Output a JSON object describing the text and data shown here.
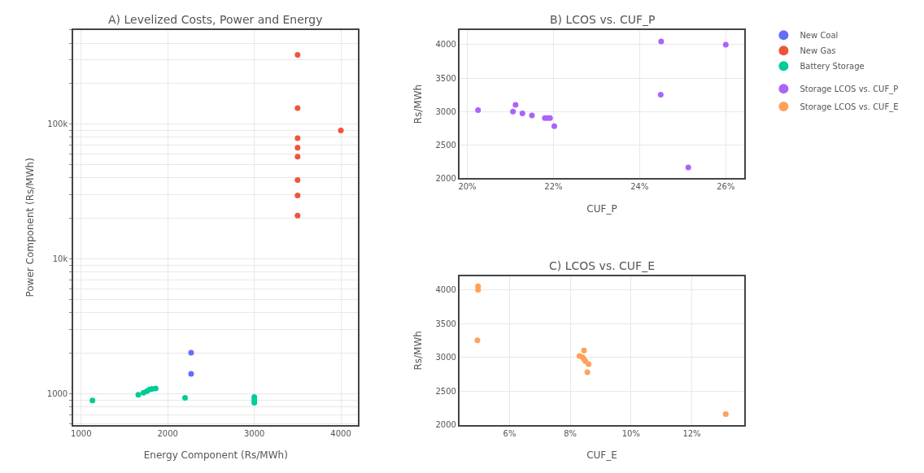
{
  "chart_data": [
    {
      "type": "scatter",
      "title": "A) Levelized Costs, Power and Energy",
      "xlabel": "Energy Component (Rs/MWh)",
      "ylabel": "Power Component (Rs/MWh)",
      "log": "y",
      "grid": true,
      "legend": "right",
      "marker": "circle",
      "xlim": [
        910,
        4200
      ],
      "xticks": [
        1000,
        2000,
        3000,
        4000
      ],
      "ylim": [
        590,
        500000
      ],
      "yticks": [
        {
          "value": 600,
          "label": null
        },
        {
          "value": 700,
          "label": null
        },
        {
          "value": 800,
          "label": null
        },
        {
          "value": 900,
          "label": null
        },
        1000,
        {
          "value": 2000,
          "label": null
        },
        {
          "value": 3000,
          "label": null
        },
        {
          "value": 4000,
          "label": null
        },
        {
          "value": 5000,
          "label": null
        },
        {
          "value": 6000,
          "label": null
        },
        {
          "value": 7000,
          "label": null
        },
        {
          "value": 8000,
          "label": null
        },
        {
          "value": 9000,
          "label": null
        },
        {
          "value": 10000,
          "label": "10k"
        },
        {
          "value": 20000,
          "label": null
        },
        {
          "value": 30000,
          "label": null
        },
        {
          "value": 40000,
          "label": null
        },
        {
          "value": 50000,
          "label": null
        },
        {
          "value": 60000,
          "label": null
        },
        {
          "value": 70000,
          "label": null
        },
        {
          "value": 80000,
          "label": null
        },
        {
          "value": 90000,
          "label": null
        },
        {
          "value": 100000,
          "label": "100k"
        },
        {
          "value": 200000,
          "label": null
        },
        {
          "value": 300000,
          "label": null
        },
        {
          "value": 400000,
          "label": null
        },
        {
          "value": 500000,
          "label": null
        }
      ],
      "series": [
        {
          "name": "New Coal",
          "color": "#636efa",
          "x": [
            2270,
            2270
          ],
          "values": [
            2020,
            1410
          ]
        },
        {
          "name": "New Gas",
          "color": "#ef553b",
          "x": [
            3500,
            3500,
            3500,
            3500,
            3500,
            3500,
            3500,
            3500,
            4000
          ],
          "values": [
            327000,
            132000,
            79000,
            67000,
            57500,
            38600,
            29700,
            21000,
            90000
          ]
        },
        {
          "name": "Battery Storage",
          "color": "#00cc96",
          "x": [
            1130,
            1660,
            1720,
            1760,
            1790,
            1820,
            1860,
            2200,
            3000,
            3000,
            3000
          ],
          "values": [
            895,
            985,
            1020,
            1050,
            1080,
            1090,
            1100,
            935,
            950,
            900,
            860
          ]
        }
      ]
    },
    {
      "type": "scatter",
      "title": "B) LCOS vs. CUF_P",
      "xlabel": "CUF_P",
      "ylabel": "Rs/MWh",
      "grid": true,
      "legend": "right",
      "marker": "circle",
      "xlim": [
        19.82,
        26.43
      ],
      "xticks": [
        {
          "value": 20,
          "label": "20%"
        },
        {
          "value": 22,
          "label": "22%"
        },
        {
          "value": 24,
          "label": "24%"
        },
        {
          "value": 26,
          "label": "26%"
        }
      ],
      "ylim": [
        2000,
        4220
      ],
      "yticks": [
        2000,
        2500,
        3000,
        3500,
        4000
      ],
      "series": [
        {
          "name": "Storage LCOS vs. CUF_P",
          "color": "#ab63fa",
          "x": [
            20.25,
            21.06,
            21.12,
            21.28,
            21.5,
            21.8,
            21.86,
            21.92,
            22.02,
            24.5,
            24.49,
            25.13,
            26.0
          ],
          "values": [
            3020,
            3000,
            3100,
            2970,
            2940,
            2900,
            2900,
            2900,
            2780,
            4050,
            3250,
            2160,
            4000
          ]
        }
      ]
    },
    {
      "type": "scatter",
      "title": "C) LCOS vs. CUF_E",
      "xlabel": "CUF_E",
      "ylabel": "Rs/MWh",
      "grid": true,
      "legend": "right",
      "marker": "circle",
      "xlim": [
        4.35,
        13.73
      ],
      "xticks": [
        {
          "value": 6,
          "label": "6%"
        },
        {
          "value": 8,
          "label": "8%"
        },
        {
          "value": 10,
          "label": "10%"
        },
        {
          "value": 12,
          "label": "12%"
        }
      ],
      "ylim": [
        2000,
        4200
      ],
      "yticks": [
        2000,
        2500,
        3000,
        3500,
        4000
      ],
      "series": [
        {
          "name": "Storage LCOS vs. CUF_E",
          "color": "#ffa15a",
          "x": [
            8.3,
            8.4,
            8.45,
            8.45,
            8.5,
            8.6,
            8.56,
            4.96,
            4.94,
            13.12,
            4.96
          ],
          "values": [
            3020,
            3000,
            3100,
            2970,
            2940,
            2900,
            2780,
            4050,
            3250,
            2160,
            4000
          ]
        }
      ]
    }
  ]
}
